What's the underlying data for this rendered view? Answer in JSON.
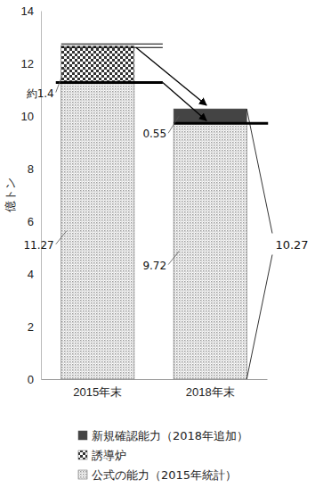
{
  "chart_data": {
    "type": "bar",
    "stacked": true,
    "y_label": "億トン",
    "categories": [
      "2015年末",
      "2018年末"
    ],
    "series": [
      {
        "name": "新規確認能力（2018年追加）",
        "color": "#444444",
        "values": [
          null,
          0.55
        ]
      },
      {
        "name": "誘導炉",
        "color": "#333333",
        "values": [
          1.4,
          null
        ],
        "value_labels": [
          "約1.4",
          null
        ]
      },
      {
        "name": "公式の能力（2015年統計）",
        "color": "#9a9a9a",
        "values": [
          11.27,
          9.72
        ]
      }
    ],
    "ylim": [
      0,
      14
    ],
    "yticks": [
      0,
      2,
      4,
      6,
      8,
      10,
      12,
      14
    ],
    "data_labels": true,
    "legend": "bottom",
    "annotations": [
      {
        "text": "10.27"
      }
    ]
  }
}
